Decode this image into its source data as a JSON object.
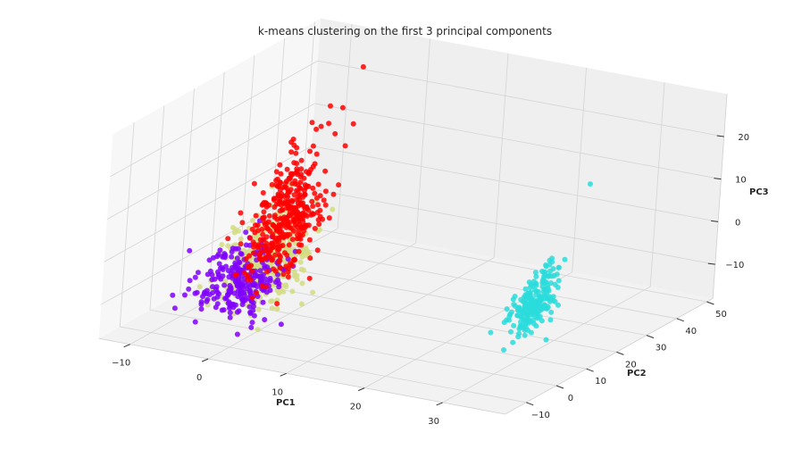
{
  "chart_data": {
    "type": "scatter3d",
    "title": "k-means clustering on the first 3 principal components",
    "xlabel": "PC1",
    "ylabel": "PC2",
    "zlabel": "PC3",
    "xlim": [
      -14,
      38
    ],
    "ylim": [
      -17,
      52
    ],
    "zlim": [
      -18,
      30
    ],
    "xticks": [
      -10,
      0,
      10,
      20,
      30
    ],
    "yticks": [
      -10,
      0,
      10,
      20,
      30,
      40,
      50
    ],
    "zticks": [
      -10,
      0,
      10,
      20
    ],
    "grid": true,
    "legend": "none",
    "clusters": [
      {
        "color": "#d4dc82",
        "count": 420,
        "center": [
          -1,
          2,
          -5
        ],
        "spread": [
          2.2,
          3,
          3.5
        ],
        "trend": [
          0.6,
          0.4,
          3
        ]
      },
      {
        "color": "#8000ff",
        "count": 260,
        "center": [
          -3,
          0,
          -8.5
        ],
        "spread": [
          2.2,
          3,
          3
        ],
        "trend": [
          0.5,
          0.3,
          2.5
        ]
      },
      {
        "color": "#ff0000",
        "count": 380,
        "center": [
          1,
          3,
          6
        ],
        "spread": [
          1.8,
          2.5,
          2.5
        ],
        "trend": [
          0.9,
          0.5,
          6
        ]
      },
      {
        "color": "#2adcdc",
        "count": 220,
        "center": [
          25,
          25,
          -14
        ],
        "spread": [
          1,
          1.5,
          1.5
        ],
        "trend": [
          0.3,
          1.6,
          2.6
        ]
      }
    ],
    "outliers": [
      {
        "color": "#ff0000",
        "point": [
          9,
          5,
          45
        ]
      },
      {
        "color": "#2adcdc",
        "point": [
          27,
          37,
          11
        ]
      },
      {
        "color": "#8000ff",
        "point": [
          -9,
          -2,
          -12
        ]
      }
    ]
  }
}
